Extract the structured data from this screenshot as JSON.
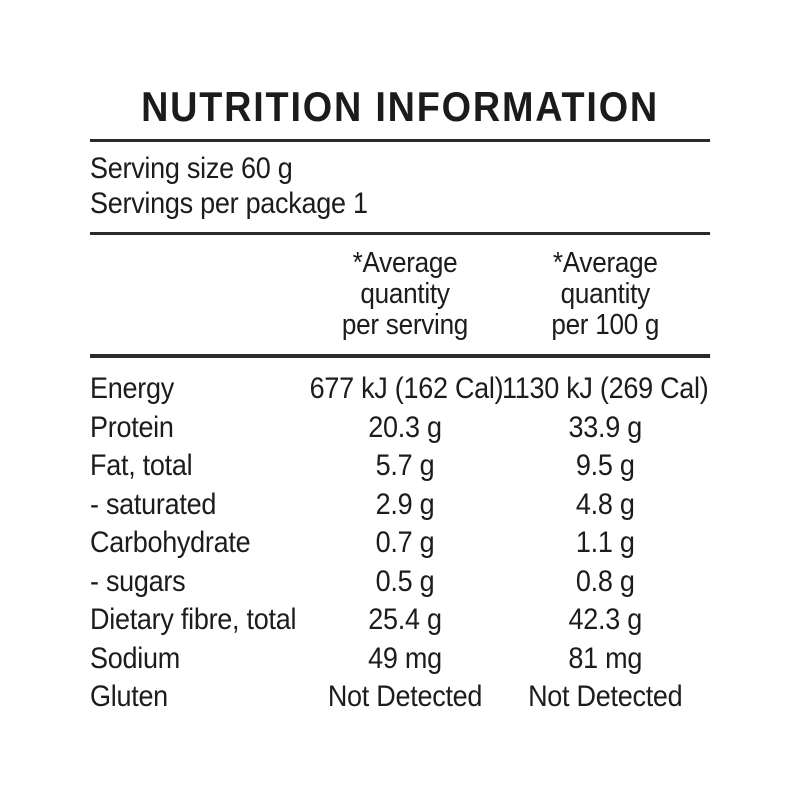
{
  "label": {
    "title": "NUTRITION INFORMATION",
    "serving_size": "Serving size 60 g",
    "servings_per_package": "Servings per package 1",
    "column_headers": {
      "per_serving": "*Average\nquantity\nper serving",
      "per_100g": "*Average\nquantity\nper 100 g"
    },
    "rows": [
      {
        "nutrient": "Energy",
        "per_serving": "677 kJ (162 Cal)",
        "per_100g": "1130 kJ (269 Cal)"
      },
      {
        "nutrient": "Protein",
        "per_serving": "20.3 g",
        "per_100g": "33.9 g"
      },
      {
        "nutrient": "Fat, total",
        "per_serving": "5.7 g",
        "per_100g": "9.5 g"
      },
      {
        "nutrient": "- saturated",
        "per_serving": "2.9 g",
        "per_100g": "4.8 g"
      },
      {
        "nutrient": "Carbohydrate",
        "per_serving": "0.7 g",
        "per_100g": "1.1 g"
      },
      {
        "nutrient": "- sugars",
        "per_serving": "0.5 g",
        "per_100g": "0.8 g"
      },
      {
        "nutrient": "Dietary fibre, total",
        "per_serving": "25.4 g",
        "per_100g": "42.3 g"
      },
      {
        "nutrient": "Sodium",
        "per_serving": "49 mg",
        "per_100g": "81 mg"
      },
      {
        "nutrient": "Gluten",
        "per_serving": "Not Detected",
        "per_100g": "Not Detected"
      }
    ]
  },
  "colors": {
    "background": "#ffffff",
    "text": "#1c1c1c",
    "rule": "#2b2b2b"
  }
}
